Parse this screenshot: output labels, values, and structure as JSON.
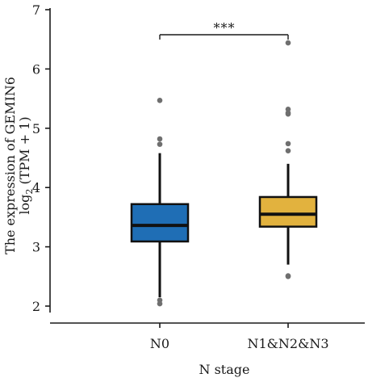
{
  "chart_data": {
    "type": "boxplot",
    "title": "",
    "xlabel": "N stage",
    "ylabel_line1": "The expression of GEMIN6",
    "ylabel_line2_prefix": "log",
    "ylabel_line2_sub": "2",
    "ylabel_line2_suffix": " (TPM + 1)",
    "ylim": [
      1.9,
      7
    ],
    "yticks": [
      2,
      3,
      4,
      5,
      6,
      7
    ],
    "grid": false,
    "significance": "***",
    "categories": [
      "N0",
      "N1&N2&N3"
    ],
    "boxes": [
      {
        "category": "N0",
        "color": "#1f6eb5",
        "whisker_low": 2.15,
        "q1": 3.09,
        "median": 3.36,
        "q3": 3.72,
        "whisker_high": 4.58,
        "outliers": [
          2.1,
          2.04,
          4.73,
          4.82,
          5.47
        ]
      },
      {
        "category": "N1&N2&N3",
        "color": "#e2b23e",
        "whisker_low": 2.7,
        "q1": 3.34,
        "median": 3.55,
        "q3": 3.84,
        "whisker_high": 4.4,
        "outliers": [
          2.5,
          2.51,
          4.62,
          4.74,
          5.24,
          5.26,
          5.32,
          6.44
        ]
      }
    ]
  }
}
